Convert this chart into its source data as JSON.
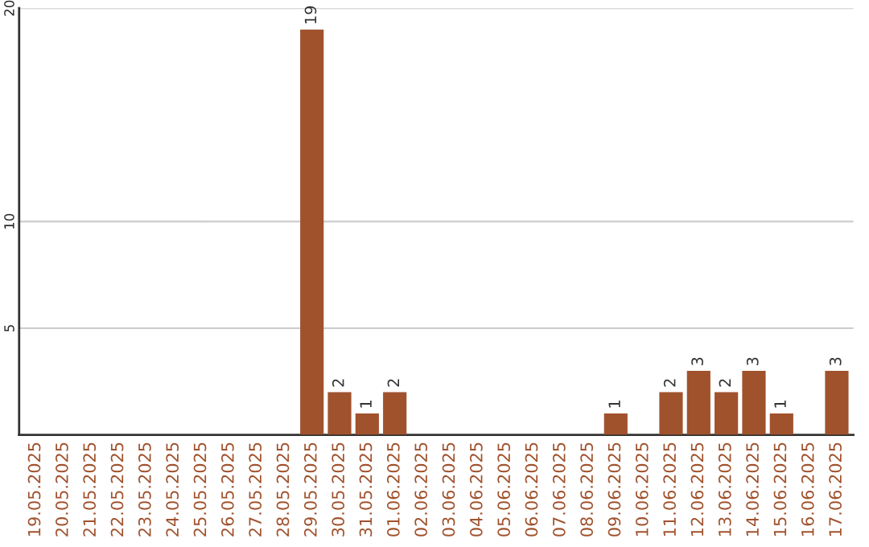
{
  "chart_data": {
    "type": "bar",
    "categories": [
      "19.05.2025",
      "20.05.2025",
      "21.05.2025",
      "22.05.2025",
      "23.05.2025",
      "24.05.2025",
      "25.05.2025",
      "26.05.2025",
      "27.05.2025",
      "28.05.2025",
      "29.05.2025",
      "30.05.2025",
      "31.05.2025",
      "01.06.2025",
      "02.06.2025",
      "03.06.2025",
      "04.06.2025",
      "05.06.2025",
      "06.06.2025",
      "07.06.2025",
      "08.06.2025",
      "09.06.2025",
      "10.06.2025",
      "11.06.2025",
      "12.06.2025",
      "13.06.2025",
      "14.06.2025",
      "15.06.2025",
      "16.06.2025",
      "17.06.2025"
    ],
    "values": [
      0,
      0,
      0,
      0,
      0,
      0,
      0,
      0,
      0,
      0,
      19,
      2,
      1,
      2,
      0,
      0,
      0,
      0,
      0,
      0,
      0,
      1,
      0,
      2,
      3,
      2,
      3,
      1,
      0,
      3
    ],
    "value_labels": [
      null,
      null,
      null,
      null,
      null,
      null,
      null,
      null,
      null,
      null,
      "19",
      "2",
      "1",
      "2",
      null,
      null,
      null,
      null,
      null,
      null,
      null,
      "1",
      null,
      "2",
      "3",
      "2",
      "3",
      "1",
      null,
      "3"
    ],
    "color": "#a0522d",
    "ylim": [
      0,
      20
    ],
    "yticks": [
      5,
      10,
      20
    ],
    "grid": "y"
  }
}
